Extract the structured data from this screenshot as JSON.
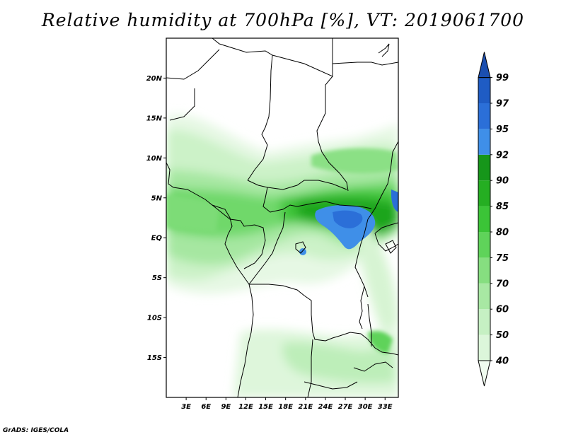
{
  "title": "Relative humidity at 700hPa [%], VT: 2019061700",
  "credit": "GrADS: IGES/COLA",
  "chart_data": {
    "type": "heatmap",
    "variable": "Relative humidity",
    "units": "%",
    "level": "700hPa",
    "valid_time": "2019061700",
    "lon_range": [
      0,
      35
    ],
    "lat_range": [
      -20,
      25
    ],
    "lon_ticks": [
      "3E",
      "6E",
      "9E",
      "12E",
      "15E",
      "18E",
      "21E",
      "24E",
      "27E",
      "30E",
      "33E"
    ],
    "lon_tick_values": [
      3,
      6,
      9,
      12,
      15,
      18,
      21,
      24,
      27,
      30,
      33
    ],
    "lat_ticks": [
      "20N",
      "15N",
      "10N",
      "5N",
      "EQ",
      "5S",
      "10S",
      "15S"
    ],
    "lat_tick_values": [
      20,
      15,
      10,
      5,
      0,
      -5,
      -10,
      -15
    ],
    "colorbar": {
      "levels": [
        "40",
        "50",
        "60",
        "70",
        "75",
        "80",
        "85",
        "90",
        "92",
        "95",
        "97",
        "99"
      ],
      "colors": [
        "#f0fbef",
        "#dcf6da",
        "#c6f0c3",
        "#a8e8a3",
        "#86de80",
        "#5fd35a",
        "#3bc437",
        "#25ae22",
        "#16961a",
        "#3f8fe8",
        "#2b6fd8",
        "#1f5cc4",
        "#1b4fb0"
      ]
    }
  }
}
